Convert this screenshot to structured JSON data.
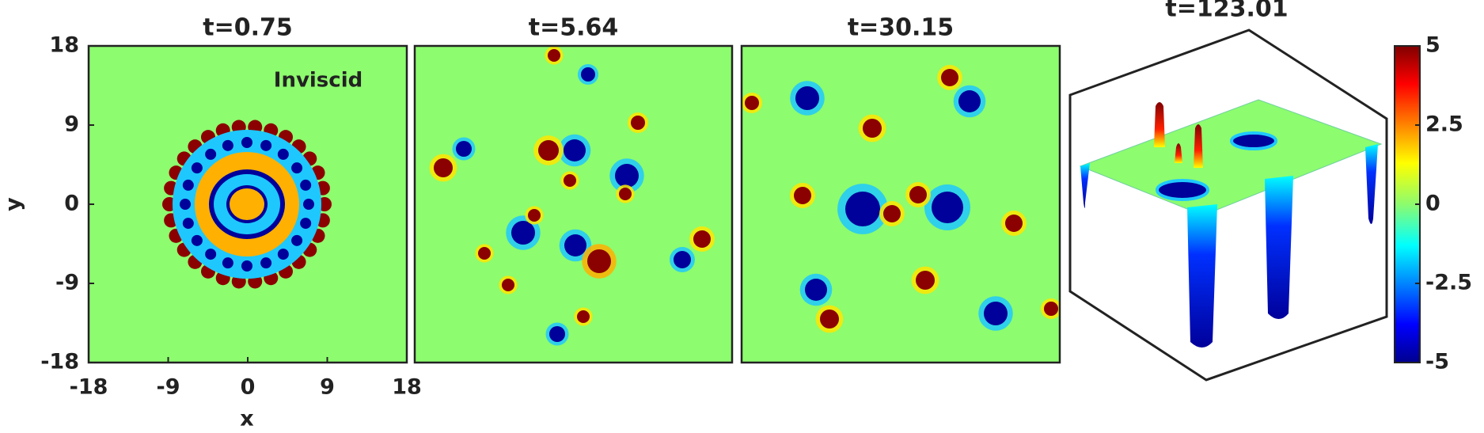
{
  "chart_data": [
    {
      "type": "heatmap",
      "title": "t=0.75",
      "annotation": "Inviscid",
      "xlabel": "x",
      "ylabel": "y",
      "xlim": [
        -18,
        18
      ],
      "ylim": [
        -18,
        18
      ],
      "xticks": [
        -18,
        -9,
        0,
        9,
        18
      ],
      "yticks": [
        -18,
        -9,
        0,
        9,
        18
      ]
    },
    {
      "type": "heatmap",
      "title": "t=5.64"
    },
    {
      "type": "heatmap",
      "title": "t=30.15"
    },
    {
      "type": "surface",
      "title": "t=123.01",
      "colorbar": {
        "lim": [
          -5,
          5
        ],
        "ticks": [
          -5,
          -2.5,
          0,
          2.5,
          5
        ]
      }
    }
  ]
}
